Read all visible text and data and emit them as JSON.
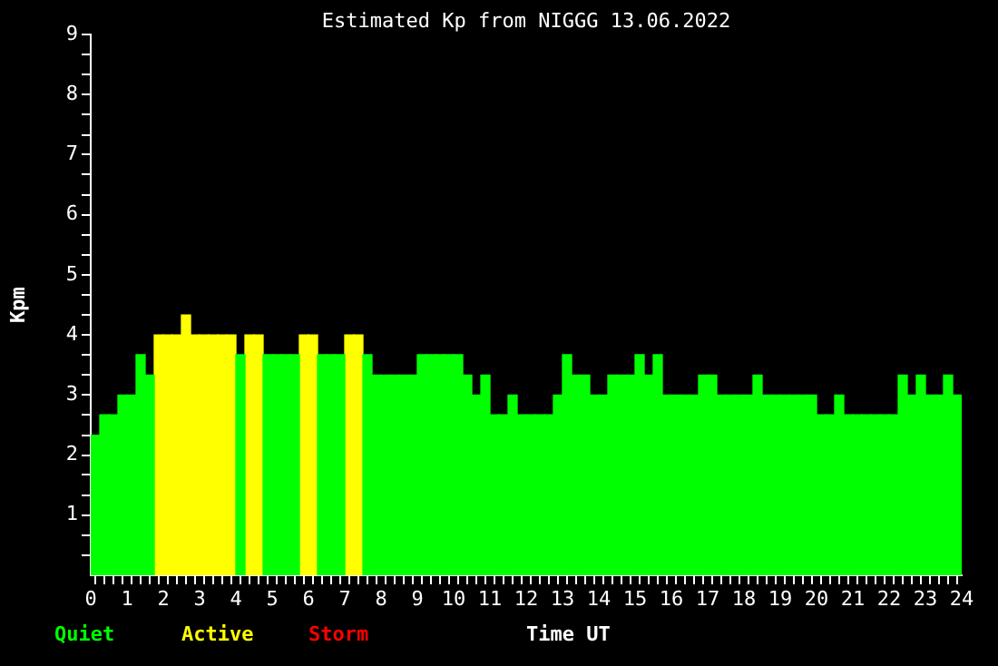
{
  "chart_data": {
    "type": "bar",
    "title": "Estimated Kp from NIGGG 13.06.2022",
    "xlabel": "Time UT",
    "ylabel": "Kpm",
    "x": [
      0.125,
      0.375,
      0.625,
      0.875,
      1.125,
      1.375,
      1.625,
      1.875,
      2.125,
      2.375,
      2.625,
      2.875,
      3.125,
      3.375,
      3.625,
      3.875,
      4.125,
      4.375,
      4.625,
      4.875,
      5.125,
      5.375,
      5.625,
      5.875,
      6.125,
      6.375,
      6.625,
      6.875,
      7.125,
      7.375,
      7.625,
      7.875,
      8.125,
      8.375,
      8.625,
      8.875,
      9.125,
      9.375,
      9.625,
      9.875,
      10.125,
      10.375,
      10.625,
      10.875,
      11.125,
      11.375,
      11.625,
      11.875,
      12.125,
      12.375,
      12.625,
      12.875,
      13.125,
      13.375,
      13.625,
      13.875,
      14.125,
      14.375,
      14.625,
      14.875,
      15.125,
      15.375,
      15.625,
      15.875,
      16.125,
      16.375,
      16.625,
      16.875,
      17.125,
      17.375,
      17.625,
      17.875,
      18.125,
      18.375,
      18.625,
      18.875,
      19.125,
      19.375,
      19.625,
      19.875,
      20.125,
      20.375,
      20.625,
      20.875,
      21.125,
      21.375,
      21.625,
      21.875,
      22.125,
      22.375,
      22.625,
      22.875,
      23.125,
      23.375,
      23.625,
      23.875
    ],
    "series": [
      {
        "name": "Quiet",
        "color": "#00ff00",
        "values": [
          2.33,
          2.67,
          2.67,
          3,
          3,
          3.67,
          3.33,
          null,
          null,
          null,
          null,
          null,
          null,
          null,
          null,
          null,
          3.67,
          null,
          null,
          3.67,
          3.67,
          3.67,
          3.67,
          null,
          null,
          3.67,
          3.67,
          3.67,
          null,
          null,
          3.67,
          3.33,
          3.33,
          3.33,
          3.33,
          3.33,
          3.67,
          3.67,
          3.67,
          3.67,
          3.67,
          3.33,
          3,
          3.33,
          2.67,
          2.67,
          3,
          2.67,
          2.67,
          2.67,
          2.67,
          3,
          3.67,
          3.33,
          3.33,
          3,
          3,
          3.33,
          3.33,
          3.33,
          3.67,
          3.33,
          3.67,
          3,
          3,
          3,
          3,
          3.33,
          3.33,
          3,
          3,
          3,
          3,
          3.33,
          3,
          3,
          3,
          3,
          3,
          3,
          2.67,
          2.67,
          3,
          2.67,
          2.67,
          2.67,
          2.67,
          2.67,
          2.67,
          3.33,
          3,
          3.33,
          3,
          3,
          3.33,
          3
        ]
      },
      {
        "name": "Active",
        "color": "#ffff00",
        "values": [
          null,
          null,
          null,
          null,
          null,
          null,
          null,
          4,
          4,
          4,
          4.33,
          4,
          4,
          4,
          4,
          4,
          null,
          4,
          4,
          null,
          null,
          null,
          null,
          4,
          4,
          null,
          null,
          null,
          4,
          4,
          null,
          null,
          null,
          null,
          null,
          null,
          null,
          null,
          null,
          null,
          null,
          null,
          null,
          null,
          null,
          null,
          null,
          null,
          null,
          null,
          null,
          null,
          null,
          null,
          null,
          null,
          null,
          null,
          null,
          null,
          null,
          null,
          null,
          null,
          null,
          null,
          null,
          null,
          null,
          null,
          null,
          null,
          null,
          null,
          null,
          null,
          null,
          null,
          null,
          null,
          null,
          null,
          null,
          null,
          null,
          null,
          null,
          null,
          null,
          null,
          null,
          null,
          null,
          null,
          null,
          null
        ]
      },
      {
        "name": "Storm",
        "color": "#ff0000",
        "values": [
          null,
          null,
          null,
          null,
          null,
          null,
          null,
          null,
          null,
          null,
          null,
          null,
          null,
          null,
          null,
          null,
          null,
          null,
          null,
          null,
          null,
          null,
          null,
          null,
          null,
          null,
          null,
          null,
          null,
          null,
          null,
          null,
          null,
          null,
          null,
          null,
          null,
          null,
          null,
          null,
          null,
          null,
          null,
          null,
          null,
          null,
          null,
          null,
          null,
          null,
          null,
          null,
          null,
          null,
          null,
          null,
          null,
          null,
          null,
          null,
          null,
          null,
          null,
          null,
          null,
          null,
          null,
          null,
          null,
          null,
          null,
          null,
          null,
          null,
          null,
          null,
          null,
          null,
          null,
          null,
          null,
          null,
          null,
          null,
          null,
          null,
          null,
          null,
          null,
          null,
          null,
          null,
          null,
          null,
          null,
          null
        ]
      }
    ],
    "stacked": true,
    "xlim": [
      0,
      24
    ],
    "xticks": [
      0,
      {
        "value": 0.25,
        "label": null
      },
      {
        "value": 0.5,
        "label": null
      },
      {
        "value": 0.75,
        "label": null
      },
      1,
      {
        "value": 1.25,
        "label": null
      },
      {
        "value": 1.5,
        "label": null
      },
      {
        "value": 1.75,
        "label": null
      },
      2,
      {
        "value": 2.25,
        "label": null
      },
      {
        "value": 2.5,
        "label": null
      },
      {
        "value": 2.75,
        "label": null
      },
      3,
      {
        "value": 3.25,
        "label": null
      },
      {
        "value": 3.5,
        "label": null
      },
      {
        "value": 3.75,
        "label": null
      },
      4,
      {
        "value": 4.25,
        "label": null
      },
      {
        "value": 4.5,
        "label": null
      },
      {
        "value": 4.75,
        "label": null
      },
      5,
      {
        "value": 5.25,
        "label": null
      },
      {
        "value": 5.5,
        "label": null
      },
      {
        "value": 5.75,
        "label": null
      },
      6,
      {
        "value": 6.25,
        "label": null
      },
      {
        "value": 6.5,
        "label": null
      },
      {
        "value": 6.75,
        "label": null
      },
      7,
      {
        "value": 7.25,
        "label": null
      },
      {
        "value": 7.5,
        "label": null
      },
      {
        "value": 7.75,
        "label": null
      },
      8,
      {
        "value": 8.25,
        "label": null
      },
      {
        "value": 8.5,
        "label": null
      },
      {
        "value": 8.75,
        "label": null
      },
      9,
      {
        "value": 9.25,
        "label": null
      },
      {
        "value": 9.5,
        "label": null
      },
      {
        "value": 9.75,
        "label": null
      },
      10,
      {
        "value": 10.25,
        "label": null
      },
      {
        "value": 10.5,
        "label": null
      },
      {
        "value": 10.75,
        "label": null
      },
      11,
      {
        "value": 11.25,
        "label": null
      },
      {
        "value": 11.5,
        "label": null
      },
      {
        "value": 11.75,
        "label": null
      },
      12,
      {
        "value": 12.25,
        "label": null
      },
      {
        "value": 12.5,
        "label": null
      },
      {
        "value": 12.75,
        "label": null
      },
      13,
      {
        "value": 13.25,
        "label": null
      },
      {
        "value": 13.5,
        "label": null
      },
      {
        "value": 13.75,
        "label": null
      },
      14,
      {
        "value": 14.25,
        "label": null
      },
      {
        "value": 14.5,
        "label": null
      },
      {
        "value": 14.75,
        "label": null
      },
      15,
      {
        "value": 15.25,
        "label": null
      },
      {
        "value": 15.5,
        "label": null
      },
      {
        "value": 15.75,
        "label": null
      },
      16,
      {
        "value": 16.25,
        "label": null
      },
      {
        "value": 16.5,
        "label": null
      },
      {
        "value": 16.75,
        "label": null
      },
      17,
      {
        "value": 17.25,
        "label": null
      },
      {
        "value": 17.5,
        "label": null
      },
      {
        "value": 17.75,
        "label": null
      },
      18,
      {
        "value": 18.25,
        "label": null
      },
      {
        "value": 18.5,
        "label": null
      },
      {
        "value": 18.75,
        "label": null
      },
      19,
      {
        "value": 19.25,
        "label": null
      },
      {
        "value": 19.5,
        "label": null
      },
      {
        "value": 19.75,
        "label": null
      },
      20,
      {
        "value": 20.25,
        "label": null
      },
      {
        "value": 20.5,
        "label": null
      },
      {
        "value": 20.75,
        "label": null
      },
      21,
      {
        "value": 21.25,
        "label": null
      },
      {
        "value": 21.5,
        "label": null
      },
      {
        "value": 21.75,
        "label": null
      },
      22,
      {
        "value": 22.25,
        "label": null
      },
      {
        "value": 22.5,
        "label": null
      },
      {
        "value": 22.75,
        "label": null
      },
      23,
      {
        "value": 23.25,
        "label": null
      },
      {
        "value": 23.5,
        "label": null
      },
      {
        "value": 23.75,
        "label": null
      },
      24
    ],
    "ylim": [
      0,
      9
    ],
    "yticks": [
      {
        "value": 0.33,
        "label": null
      },
      {
        "value": 0.67,
        "label": null
      },
      1,
      {
        "value": 1.33,
        "label": null
      },
      {
        "value": 1.67,
        "label": null
      },
      2,
      {
        "value": 2.33,
        "label": null
      },
      {
        "value": 2.67,
        "label": null
      },
      3,
      {
        "value": 3.33,
        "label": null
      },
      {
        "value": 3.67,
        "label": null
      },
      4,
      {
        "value": 4.33,
        "label": null
      },
      {
        "value": 4.67,
        "label": null
      },
      5,
      {
        "value": 5.33,
        "label": null
      },
      {
        "value": 5.67,
        "label": null
      },
      6,
      {
        "value": 6.33,
        "label": null
      },
      {
        "value": 6.67,
        "label": null
      },
      7,
      {
        "value": 7.33,
        "label": null
      },
      {
        "value": 7.67,
        "label": null
      },
      8,
      {
        "value": 8.33,
        "label": null
      },
      {
        "value": 8.67,
        "label": null
      },
      9
    ],
    "grid": false,
    "legend": "bottom left"
  }
}
